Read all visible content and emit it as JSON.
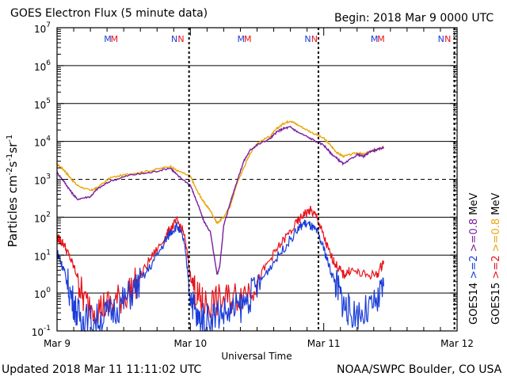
{
  "header": {
    "title": "GOES Electron Flux (5 minute data)",
    "begin": "Begin: 2018 Mar 9 0000 UTC"
  },
  "footer": {
    "updated": "Updated 2018 Mar 11 11:11:02 UTC",
    "credit": "NOAA/SWPC Boulder, CO USA"
  },
  "chart_data": {
    "type": "line",
    "title": "GOES Electron Flux (5 minute data)",
    "xlabel": "Universal Time",
    "ylabel": "Particles cm-2 s-1 sr-1",
    "ylabel_parts": {
      "main": "Particles cm",
      "e1": "-2",
      "mid1": "s",
      "e2": "-1",
      "mid2": "sr",
      "e3": "-1"
    },
    "yscale": "log",
    "ylim_exp": [
      -1,
      7
    ],
    "yticks": [
      {
        "exp": -1,
        "label": "10",
        "sup": "-1"
      },
      {
        "exp": 0,
        "label": "10",
        "sup": "0"
      },
      {
        "exp": 1,
        "label": "10",
        "sup": "1"
      },
      {
        "exp": 2,
        "label": "10",
        "sup": "2"
      },
      {
        "exp": 3,
        "label": "10",
        "sup": "3"
      },
      {
        "exp": 4,
        "label": "10",
        "sup": "4"
      },
      {
        "exp": 5,
        "label": "10",
        "sup": "5"
      },
      {
        "exp": 6,
        "label": "10",
        "sup": "6"
      },
      {
        "exp": 7,
        "label": "10",
        "sup": "7"
      }
    ],
    "xlim_days": [
      0,
      3
    ],
    "xticks": [
      {
        "day": 0,
        "label": "Mar 9"
      },
      {
        "day": 1,
        "label": "Mar 10"
      },
      {
        "day": 2,
        "label": "Mar 11"
      },
      {
        "day": 3,
        "label": "Mar 12"
      }
    ],
    "threshold_exp": 3,
    "satellite_markers": [
      {
        "day": 0.38,
        "label": "M",
        "sat": "GOES14"
      },
      {
        "day": 0.43,
        "label": "M",
        "sat": "GOES15"
      },
      {
        "day": 0.88,
        "label": "N",
        "sat": "GOES14"
      },
      {
        "day": 0.93,
        "label": "N",
        "sat": "GOES15"
      },
      {
        "day": 1.38,
        "label": "M",
        "sat": "GOES14"
      },
      {
        "day": 1.43,
        "label": "M",
        "sat": "GOES15"
      },
      {
        "day": 1.88,
        "label": "N",
        "sat": "GOES14"
      },
      {
        "day": 1.93,
        "label": "N",
        "sat": "GOES15"
      },
      {
        "day": 2.38,
        "label": "M",
        "sat": "GOES14"
      },
      {
        "day": 2.43,
        "label": "M",
        "sat": "GOES15"
      },
      {
        "day": 2.88,
        "label": "N",
        "sat": "GOES14"
      },
      {
        "day": 2.93,
        "label": "N",
        "sat": "GOES15"
      }
    ],
    "midnight_markers": [
      0.99,
      1.96,
      2.98
    ],
    "legend": [
      {
        "text": "GOES14",
        "color": "#000000"
      },
      {
        "text": ">=2",
        "color": "#1a3cd8"
      },
      {
        "text": ">=0.8",
        "color": "#7a1fa0"
      },
      {
        "text": "MeV",
        "color": "#000000"
      },
      {
        "text": "GOES15",
        "color": "#000000"
      },
      {
        "text": ">=2",
        "color": "#e8121a"
      },
      {
        "text": ">=0.8",
        "color": "#e8a60a"
      },
      {
        "text": "MeV",
        "color": "#000000"
      }
    ],
    "series": [
      {
        "name": "GOES15 >=0.8 MeV",
        "color": "#e8a60a",
        "x": [
          0,
          0.05,
          0.1,
          0.15,
          0.25,
          0.3,
          0.4,
          0.55,
          0.7,
          0.85,
          0.9,
          1.0,
          1.05,
          1.1,
          1.15,
          1.2,
          1.25,
          1.3,
          1.35,
          1.4,
          1.45,
          1.5,
          1.6,
          1.65,
          1.7,
          1.75,
          1.8,
          1.9,
          2.0,
          2.05,
          2.1,
          2.15,
          2.25,
          2.3,
          2.35,
          2.4,
          2.45
        ],
        "y": [
          2500,
          1800,
          1100,
          700,
          500,
          600,
          1100,
          1400,
          1700,
          2200,
          1700,
          1200,
          500,
          250,
          150,
          70,
          100,
          200,
          800,
          2000,
          5000,
          9000,
          14000,
          22000,
          30000,
          35000,
          28000,
          18000,
          12000,
          8000,
          5000,
          4000,
          5000,
          4500,
          5500,
          6000,
          7000
        ]
      },
      {
        "name": "GOES14 >=0.8 MeV",
        "color": "#7a1fa0",
        "x": [
          0,
          0.05,
          0.1,
          0.15,
          0.25,
          0.3,
          0.4,
          0.55,
          0.7,
          0.85,
          0.9,
          1.0,
          1.05,
          1.1,
          1.15,
          1.2,
          1.22,
          1.25,
          1.3,
          1.35,
          1.4,
          1.45,
          1.5,
          1.6,
          1.65,
          1.7,
          1.75,
          1.8,
          1.9,
          2.0,
          2.05,
          2.1,
          2.15,
          2.25,
          2.3,
          2.35,
          2.4,
          2.45
        ],
        "y": [
          1500,
          900,
          500,
          300,
          350,
          550,
          900,
          1300,
          1500,
          2000,
          1300,
          700,
          250,
          80,
          40,
          3,
          5,
          60,
          250,
          900,
          3000,
          6000,
          8000,
          12000,
          18000,
          22000,
          24000,
          18000,
          12000,
          8000,
          5000,
          3500,
          2500,
          4500,
          4000,
          5500,
          6000,
          7000
        ]
      },
      {
        "name": "GOES15 >=2 MeV",
        "color": "#e8121a",
        "x": [
          0,
          0.02,
          0.05,
          0.1,
          0.15,
          0.2,
          0.3,
          0.4,
          0.5,
          0.6,
          0.7,
          0.8,
          0.85,
          0.9,
          0.95,
          1.0,
          1.05,
          1.1,
          1.2,
          1.3,
          1.4,
          1.5,
          1.6,
          1.7,
          1.8,
          1.85,
          1.9,
          1.95,
          2.0,
          2.05,
          2.1,
          2.15,
          2.2,
          2.3,
          2.4,
          2.45
        ],
        "y": [
          30,
          25,
          20,
          8,
          3,
          0.6,
          0.4,
          0.5,
          0.8,
          2,
          8,
          25,
          50,
          80,
          40,
          3,
          0.8,
          0.5,
          0.6,
          0.7,
          1,
          2,
          8,
          25,
          70,
          120,
          150,
          100,
          30,
          10,
          5,
          3,
          4,
          3,
          3,
          7
        ]
      },
      {
        "name": "GOES14 >=2 MeV",
        "color": "#1a3cd8",
        "x": [
          0,
          0.02,
          0.05,
          0.1,
          0.15,
          0.2,
          0.3,
          0.4,
          0.5,
          0.6,
          0.7,
          0.8,
          0.85,
          0.9,
          0.95,
          1.0,
          1.05,
          1.1,
          1.2,
          1.3,
          1.4,
          1.5,
          1.6,
          1.7,
          1.8,
          1.85,
          1.9,
          1.95,
          2.0,
          2.05,
          2.1,
          2.15,
          2.2,
          2.3,
          2.4,
          2.45
        ],
        "y": [
          12,
          8,
          4,
          1,
          0.3,
          0.2,
          0.2,
          0.3,
          0.6,
          1.5,
          5,
          20,
          40,
          60,
          25,
          1,
          0.2,
          0.2,
          0.3,
          0.3,
          0.5,
          1.5,
          5,
          15,
          45,
          70,
          60,
          40,
          15,
          4,
          1.5,
          0.5,
          0.3,
          0.3,
          0.5,
          1.5
        ]
      }
    ]
  }
}
